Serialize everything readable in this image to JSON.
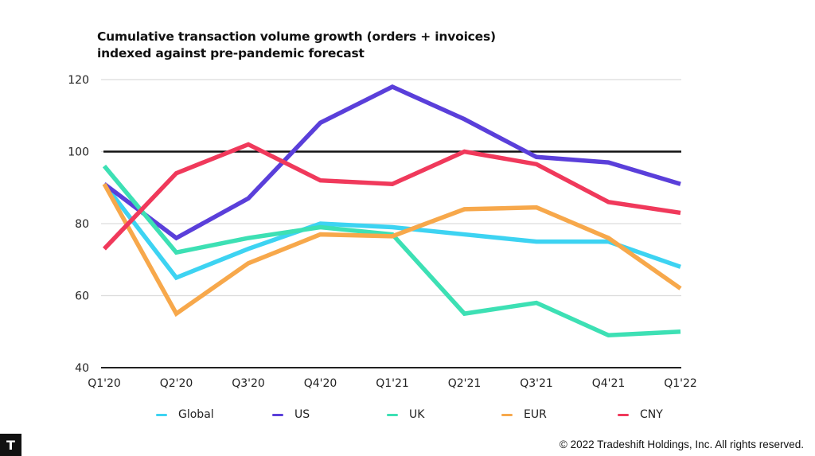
{
  "chart_data": {
    "type": "line",
    "title": "Cumulative transaction volume growth (orders + invoices)",
    "subtitle": "indexed against pre-pandemic forecast",
    "xlabel": "",
    "ylabel": "",
    "categories": [
      "Q1'20",
      "Q2'20",
      "Q3'20",
      "Q4'20",
      "Q1'21",
      "Q2'21",
      "Q3'21",
      "Q4'21",
      "Q1'22"
    ],
    "ylim": [
      40,
      120
    ],
    "yticks": [
      40,
      60,
      80,
      100,
      120
    ],
    "grid": true,
    "reference_line": 100,
    "legend_position": "bottom",
    "series": [
      {
        "name": "Global",
        "color": "#3dd3f2",
        "values": [
          91,
          65,
          73,
          80,
          79,
          77,
          75,
          75,
          68
        ]
      },
      {
        "name": "US",
        "color": "#5a3fda",
        "values": [
          91,
          76,
          87,
          108,
          118,
          109,
          98.5,
          97,
          91
        ]
      },
      {
        "name": "UK",
        "color": "#3de0b4",
        "values": [
          96,
          72,
          76,
          79,
          77,
          55,
          58,
          49,
          50
        ]
      },
      {
        "name": "EUR",
        "color": "#f7a84b",
        "values": [
          91,
          55,
          69,
          77,
          76.5,
          84,
          84.5,
          76,
          62
        ]
      },
      {
        "name": "CNY",
        "color": "#f0395b",
        "values": [
          73,
          94,
          102,
          92,
          91,
          100,
          96.5,
          86,
          83
        ]
      }
    ]
  },
  "footer": {
    "copyright": "© 2022 Tradeshift Holdings, Inc. All rights reserved.",
    "logo_letter": "T"
  }
}
